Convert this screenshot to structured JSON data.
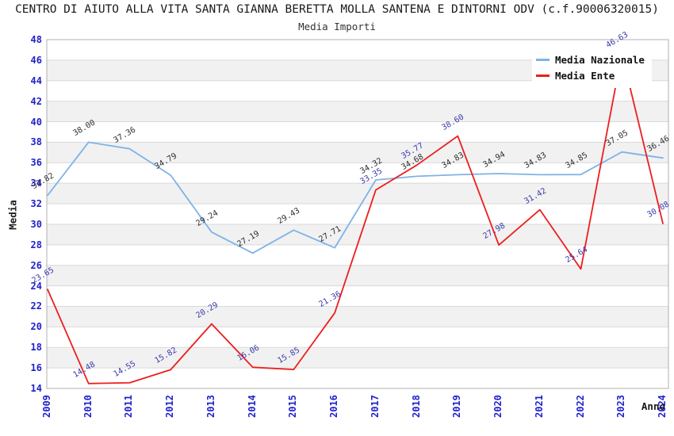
{
  "title": "CENTRO DI AIUTO ALLA VITA SANTA GIANNA BERETTA MOLLA SANTENA E DINTORNI ODV (c.f.90006320015)",
  "subtitle": "Media Importi",
  "legend": {
    "position": "top-right",
    "items": [
      {
        "label": "Media Nazionale",
        "color": "#7eb3e7"
      },
      {
        "label": "Media Ente",
        "color": "#ee1d1d"
      }
    ]
  },
  "axes": {
    "y_title": "Media",
    "x_title": "Anno",
    "y_ticks": [
      14,
      16,
      18,
      20,
      22,
      24,
      26,
      28,
      30,
      32,
      34,
      36,
      38,
      40,
      42,
      44,
      46,
      48
    ],
    "x_ticks": [
      "2009",
      "2010",
      "2011",
      "2012",
      "2013",
      "2014",
      "2015",
      "2016",
      "2017",
      "2018",
      "2019",
      "2020",
      "2021",
      "2022",
      "2023",
      "2024"
    ],
    "tick_color": "#2121ce"
  },
  "chart_data": {
    "type": "line",
    "title": "Media Importi",
    "xlabel": "Anno",
    "ylabel": "Media",
    "x": [
      2009,
      2010,
      2011,
      2012,
      2013,
      2014,
      2015,
      2016,
      2017,
      2018,
      2019,
      2020,
      2021,
      2022,
      2023,
      2024
    ],
    "series": [
      {
        "name": "Media Nazionale",
        "color": "#7eb3e7",
        "label_color": "#2e2e2e",
        "values": [
          32.82,
          38.0,
          37.36,
          34.79,
          29.24,
          27.19,
          29.43,
          27.71,
          34.32,
          34.68,
          34.83,
          34.94,
          34.83,
          34.85,
          37.05,
          36.46
        ]
      },
      {
        "name": "Media Ente",
        "color": "#ee1d1d",
        "label_color": "#3a3aac",
        "values": [
          23.65,
          14.48,
          14.55,
          15.82,
          20.29,
          16.06,
          15.85,
          21.36,
          33.35,
          35.77,
          38.6,
          27.98,
          31.42,
          25.64,
          46.63,
          30.08
        ]
      }
    ],
    "ylim": [
      14,
      48
    ],
    "y_tick_step": 2,
    "grid": "horizontal-bands-alternating",
    "band_color": "#f1f1f1",
    "gridline_color": "#d9d9d9",
    "border_color": "#b0b0b0",
    "legend_position": "top-right"
  }
}
